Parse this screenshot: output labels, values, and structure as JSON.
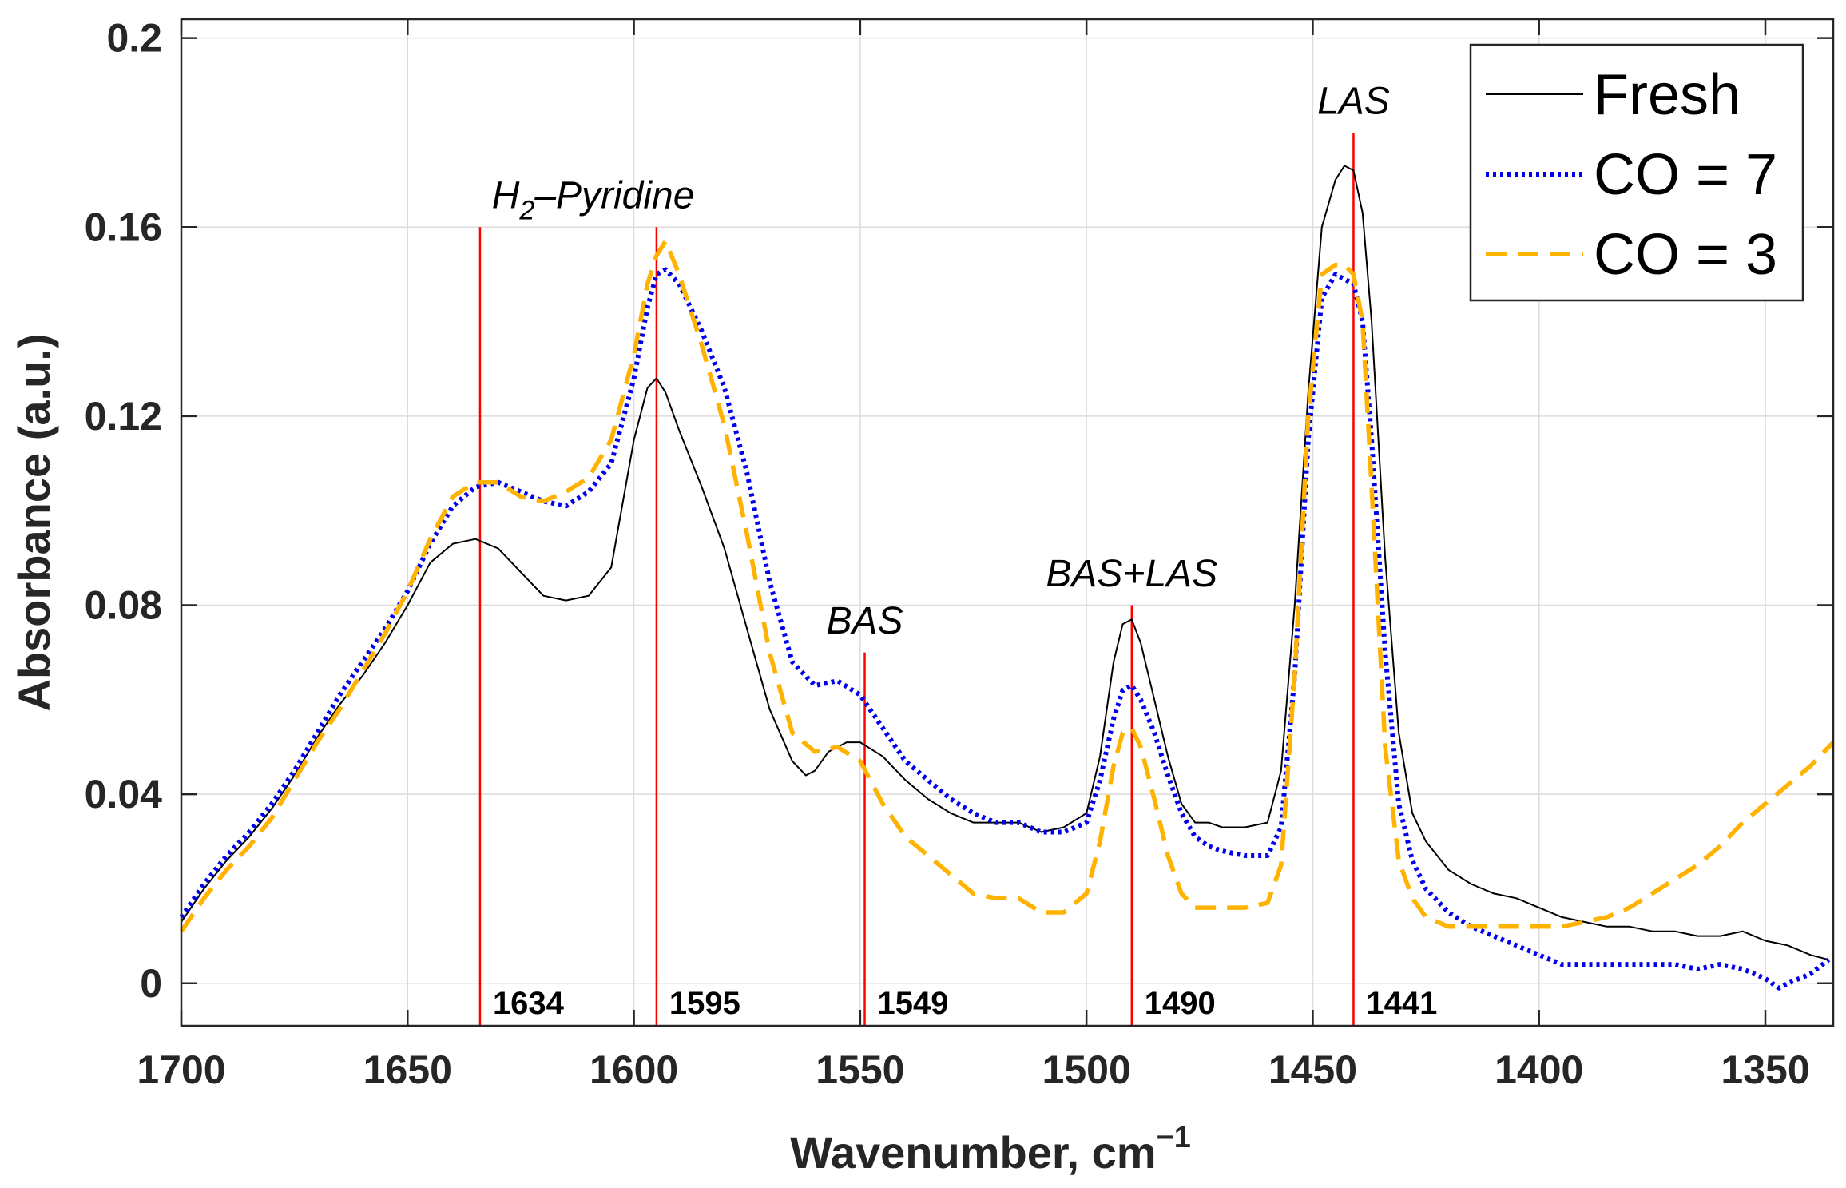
{
  "chart_data": {
    "type": "line",
    "title": "",
    "xlabel": "Wavenumber, cm",
    "xlabel_superscript": "−1",
    "ylabel": "Absorbance (a.u.)",
    "xlim": [
      1700,
      1335
    ],
    "x_reversed": true,
    "ylim": [
      -0.009,
      0.204
    ],
    "x_ticks": [
      1700,
      1650,
      1600,
      1550,
      1500,
      1450,
      1400,
      1350
    ],
    "y_ticks": [
      0,
      0.04,
      0.08,
      0.12,
      0.16,
      0.2
    ],
    "y_tick_labels": [
      "0",
      "0.04",
      "0.08",
      "0.12",
      "0.16",
      "0.2"
    ],
    "grid": true,
    "legend_position": "top-right",
    "series": [
      {
        "name": "Fresh",
        "color": "#000000",
        "style": "solid",
        "x": [
          1700,
          1695,
          1690,
          1685,
          1680,
          1675,
          1670,
          1665,
          1660,
          1655,
          1650,
          1645,
          1640,
          1635,
          1630,
          1625,
          1620,
          1615,
          1610,
          1605,
          1600,
          1597,
          1595,
          1593,
          1590,
          1585,
          1580,
          1575,
          1570,
          1565,
          1562,
          1560,
          1557,
          1553,
          1550,
          1545,
          1540,
          1535,
          1530,
          1525,
          1520,
          1515,
          1510,
          1505,
          1500,
          1497,
          1494,
          1492,
          1490,
          1488,
          1485,
          1482,
          1479,
          1476,
          1473,
          1470,
          1465,
          1460,
          1457,
          1454,
          1451,
          1448,
          1445,
          1443,
          1441,
          1439,
          1437,
          1434,
          1431,
          1428,
          1425,
          1420,
          1415,
          1410,
          1405,
          1400,
          1395,
          1390,
          1385,
          1380,
          1375,
          1370,
          1365,
          1360,
          1355,
          1350,
          1345,
          1340,
          1336
        ],
        "y": [
          0.013,
          0.02,
          0.026,
          0.031,
          0.037,
          0.044,
          0.052,
          0.059,
          0.065,
          0.072,
          0.08,
          0.089,
          0.093,
          0.094,
          0.092,
          0.087,
          0.082,
          0.081,
          0.082,
          0.088,
          0.115,
          0.126,
          0.128,
          0.125,
          0.117,
          0.105,
          0.092,
          0.075,
          0.058,
          0.047,
          0.044,
          0.045,
          0.049,
          0.051,
          0.051,
          0.048,
          0.043,
          0.039,
          0.036,
          0.034,
          0.034,
          0.034,
          0.032,
          0.033,
          0.036,
          0.048,
          0.068,
          0.076,
          0.077,
          0.072,
          0.06,
          0.048,
          0.038,
          0.034,
          0.034,
          0.033,
          0.033,
          0.034,
          0.045,
          0.08,
          0.125,
          0.16,
          0.17,
          0.173,
          0.172,
          0.163,
          0.14,
          0.09,
          0.053,
          0.036,
          0.03,
          0.024,
          0.021,
          0.019,
          0.018,
          0.016,
          0.014,
          0.013,
          0.012,
          0.012,
          0.011,
          0.011,
          0.01,
          0.01,
          0.011,
          0.009,
          0.008,
          0.006,
          0.005
        ]
      },
      {
        "name": "CO = 7",
        "color": "#0000ee",
        "style": "dotted",
        "x": [
          1700,
          1695,
          1690,
          1685,
          1680,
          1675,
          1670,
          1665,
          1660,
          1655,
          1650,
          1645,
          1640,
          1635,
          1630,
          1625,
          1620,
          1615,
          1610,
          1605,
          1600,
          1597,
          1595,
          1593,
          1590,
          1585,
          1580,
          1575,
          1570,
          1565,
          1560,
          1555,
          1550,
          1545,
          1540,
          1535,
          1530,
          1525,
          1520,
          1515,
          1510,
          1505,
          1500,
          1497,
          1494,
          1492,
          1490,
          1488,
          1485,
          1482,
          1479,
          1476,
          1473,
          1470,
          1465,
          1460,
          1457,
          1454,
          1451,
          1448,
          1445,
          1443,
          1441,
          1439,
          1437,
          1434,
          1431,
          1428,
          1425,
          1420,
          1415,
          1410,
          1405,
          1400,
          1395,
          1390,
          1385,
          1380,
          1375,
          1370,
          1365,
          1360,
          1355,
          1350,
          1347,
          1345,
          1340,
          1336
        ],
        "y": [
          0.014,
          0.021,
          0.027,
          0.032,
          0.038,
          0.045,
          0.053,
          0.061,
          0.068,
          0.075,
          0.083,
          0.093,
          0.101,
          0.105,
          0.106,
          0.104,
          0.102,
          0.101,
          0.104,
          0.11,
          0.128,
          0.143,
          0.15,
          0.151,
          0.148,
          0.138,
          0.126,
          0.108,
          0.085,
          0.068,
          0.063,
          0.064,
          0.061,
          0.054,
          0.047,
          0.043,
          0.039,
          0.036,
          0.034,
          0.034,
          0.032,
          0.032,
          0.034,
          0.043,
          0.056,
          0.062,
          0.063,
          0.06,
          0.053,
          0.044,
          0.036,
          0.031,
          0.029,
          0.028,
          0.027,
          0.027,
          0.033,
          0.065,
          0.115,
          0.145,
          0.15,
          0.149,
          0.148,
          0.14,
          0.115,
          0.07,
          0.038,
          0.026,
          0.02,
          0.015,
          0.012,
          0.01,
          0.008,
          0.006,
          0.004,
          0.004,
          0.004,
          0.004,
          0.004,
          0.004,
          0.003,
          0.004,
          0.003,
          0.001,
          -0.001,
          0.0,
          0.002,
          0.005
        ]
      },
      {
        "name": "CO = 3",
        "color": "#ffb300",
        "style": "dashed",
        "x": [
          1700,
          1695,
          1690,
          1685,
          1680,
          1675,
          1670,
          1665,
          1660,
          1655,
          1650,
          1645,
          1640,
          1635,
          1630,
          1625,
          1620,
          1615,
          1610,
          1605,
          1600,
          1597,
          1595,
          1593,
          1590,
          1585,
          1580,
          1575,
          1570,
          1565,
          1560,
          1555,
          1550,
          1545,
          1540,
          1535,
          1530,
          1525,
          1520,
          1515,
          1510,
          1505,
          1500,
          1497,
          1494,
          1492,
          1490,
          1488,
          1485,
          1482,
          1479,
          1476,
          1473,
          1470,
          1465,
          1460,
          1457,
          1454,
          1451,
          1448,
          1445,
          1443,
          1441,
          1439,
          1437,
          1434,
          1431,
          1428,
          1425,
          1420,
          1415,
          1410,
          1405,
          1400,
          1395,
          1390,
          1385,
          1380,
          1375,
          1370,
          1365,
          1360,
          1355,
          1350,
          1345,
          1340,
          1335
        ],
        "y": [
          0.011,
          0.018,
          0.024,
          0.029,
          0.035,
          0.043,
          0.051,
          0.058,
          0.066,
          0.074,
          0.083,
          0.094,
          0.103,
          0.106,
          0.106,
          0.103,
          0.102,
          0.104,
          0.107,
          0.115,
          0.133,
          0.148,
          0.154,
          0.157,
          0.15,
          0.135,
          0.118,
          0.095,
          0.07,
          0.053,
          0.049,
          0.05,
          0.047,
          0.038,
          0.031,
          0.027,
          0.023,
          0.019,
          0.018,
          0.018,
          0.015,
          0.015,
          0.019,
          0.03,
          0.046,
          0.053,
          0.054,
          0.05,
          0.039,
          0.027,
          0.019,
          0.016,
          0.016,
          0.016,
          0.016,
          0.017,
          0.025,
          0.065,
          0.12,
          0.15,
          0.152,
          0.152,
          0.15,
          0.14,
          0.105,
          0.05,
          0.026,
          0.018,
          0.014,
          0.012,
          0.012,
          0.012,
          0.012,
          0.012,
          0.012,
          0.013,
          0.014,
          0.016,
          0.019,
          0.022,
          0.025,
          0.029,
          0.034,
          0.038,
          0.042,
          0.046,
          0.051
        ]
      }
    ],
    "peak_markers": [
      {
        "x": 1634,
        "label": "1634",
        "top": 0.16
      },
      {
        "x": 1595,
        "label": "1595",
        "top": 0.16
      },
      {
        "x": 1549,
        "label": "1549",
        "top": 0.07
      },
      {
        "x": 1490,
        "label": "1490",
        "top": 0.08
      },
      {
        "x": 1441,
        "label": "1441",
        "top": 0.18
      }
    ],
    "annotations": [
      {
        "text": "H",
        "sub": "2",
        "rest": "–Pyridine",
        "x": 1609,
        "y": 0.164
      },
      {
        "text": "BAS",
        "x": 1549,
        "y": 0.074
      },
      {
        "text": "BAS+LAS",
        "x": 1490,
        "y": 0.084
      },
      {
        "text": "LAS",
        "x": 1441,
        "y": 0.184
      }
    ],
    "peak_marker_color": "#ff0000",
    "grid_color": "#dcdcdc"
  }
}
